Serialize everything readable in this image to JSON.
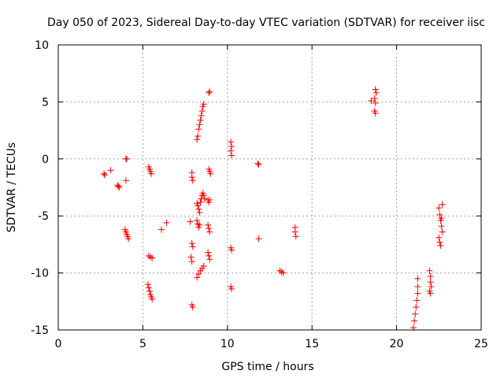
{
  "chart_data": {
    "type": "scatter",
    "title": "Day 050 of 2023, Sidereal Day-to-day VTEC variation (SDTVAR) for receiver iisc",
    "xlabel": "GPS time / hours",
    "ylabel": "SDTVAR / TECUs",
    "xlim": [
      0,
      25
    ],
    "ylim": [
      -15,
      10
    ],
    "xticks": [
      0,
      5,
      10,
      15,
      20,
      25
    ],
    "yticks": [
      -15,
      -10,
      -5,
      0,
      5,
      10
    ],
    "xtick_labels": [
      "0",
      "5",
      "10",
      "15",
      "20",
      "25"
    ],
    "ytick_labels": [
      "-15",
      "-10",
      "-5",
      "0",
      "5",
      "10"
    ],
    "grid": true,
    "marker": "+",
    "color": "#ff0000",
    "series": [
      {
        "name": "SDTVAR",
        "points": [
          [
            2.7,
            -1.3
          ],
          [
            2.75,
            -1.4
          ],
          [
            3.1,
            -1.0
          ],
          [
            3.5,
            -2.3
          ],
          [
            3.55,
            -2.4
          ],
          [
            3.6,
            -2.5
          ],
          [
            4.0,
            -1.9
          ],
          [
            4.0,
            0.0
          ],
          [
            4.05,
            0.0
          ],
          [
            3.95,
            -6.2
          ],
          [
            4.0,
            -6.4
          ],
          [
            4.05,
            -6.6
          ],
          [
            4.1,
            -6.8
          ],
          [
            4.15,
            -7.0
          ],
          [
            5.35,
            -0.7
          ],
          [
            5.4,
            -0.9
          ],
          [
            5.45,
            -1.1
          ],
          [
            5.5,
            -1.3
          ],
          [
            5.35,
            -8.5
          ],
          [
            5.45,
            -8.6
          ],
          [
            5.55,
            -8.7
          ],
          [
            5.3,
            -11.0
          ],
          [
            5.35,
            -11.3
          ],
          [
            5.4,
            -11.6
          ],
          [
            5.45,
            -11.9
          ],
          [
            5.5,
            -12.1
          ],
          [
            5.55,
            -12.3
          ],
          [
            6.1,
            -6.2
          ],
          [
            6.4,
            -5.6
          ],
          [
            7.9,
            -1.2
          ],
          [
            7.9,
            -1.6
          ],
          [
            7.95,
            -1.9
          ],
          [
            7.8,
            -5.5
          ],
          [
            7.9,
            -7.4
          ],
          [
            7.95,
            -7.7
          ],
          [
            7.85,
            -8.6
          ],
          [
            7.9,
            -9.0
          ],
          [
            7.9,
            -12.8
          ],
          [
            7.95,
            -13.0
          ],
          [
            8.2,
            1.7
          ],
          [
            8.25,
            2.0
          ],
          [
            8.3,
            2.6
          ],
          [
            8.35,
            3.0
          ],
          [
            8.4,
            3.4
          ],
          [
            8.45,
            3.8
          ],
          [
            8.5,
            4.2
          ],
          [
            8.55,
            4.6
          ],
          [
            8.6,
            4.8
          ],
          [
            8.2,
            -3.9
          ],
          [
            8.25,
            -4.1
          ],
          [
            8.3,
            -4.4
          ],
          [
            8.35,
            -4.7
          ],
          [
            8.4,
            -3.8
          ],
          [
            8.45,
            -3.5
          ],
          [
            8.5,
            -3.2
          ],
          [
            8.55,
            -3.0
          ],
          [
            8.6,
            -3.2
          ],
          [
            8.65,
            -3.5
          ],
          [
            8.2,
            -5.4
          ],
          [
            8.25,
            -5.7
          ],
          [
            8.3,
            -6.0
          ],
          [
            8.35,
            -5.8
          ],
          [
            8.2,
            -10.4
          ],
          [
            8.3,
            -10.1
          ],
          [
            8.4,
            -9.8
          ],
          [
            8.5,
            -9.6
          ],
          [
            8.6,
            -9.4
          ],
          [
            8.9,
            5.8
          ],
          [
            8.95,
            5.9
          ],
          [
            8.9,
            -0.9
          ],
          [
            8.95,
            -1.1
          ],
          [
            9.0,
            -1.3
          ],
          [
            8.85,
            -3.6
          ],
          [
            8.9,
            -3.8
          ],
          [
            8.95,
            -3.6
          ],
          [
            8.85,
            -5.8
          ],
          [
            8.9,
            -6.1
          ],
          [
            8.95,
            -6.4
          ],
          [
            8.85,
            -8.2
          ],
          [
            8.9,
            -8.5
          ],
          [
            8.95,
            -8.8
          ],
          [
            10.2,
            1.5
          ],
          [
            10.25,
            1.1
          ],
          [
            10.2,
            0.7
          ],
          [
            10.25,
            0.3
          ],
          [
            10.2,
            -7.8
          ],
          [
            10.25,
            -8.0
          ],
          [
            10.2,
            -11.2
          ],
          [
            10.25,
            -11.4
          ],
          [
            11.8,
            -0.4
          ],
          [
            11.85,
            -0.5
          ],
          [
            11.85,
            -7.0
          ],
          [
            13.1,
            -9.8
          ],
          [
            13.2,
            -9.9
          ],
          [
            13.3,
            -10.0
          ],
          [
            14.0,
            -6.0
          ],
          [
            14.0,
            -6.4
          ],
          [
            14.05,
            -6.8
          ],
          [
            18.5,
            5.1
          ],
          [
            18.7,
            5.3
          ],
          [
            18.75,
            6.1
          ],
          [
            18.8,
            5.8
          ],
          [
            18.75,
            4.9
          ],
          [
            18.7,
            4.2
          ],
          [
            18.75,
            4.0
          ],
          [
            21.0,
            -14.8
          ],
          [
            21.05,
            -14.2
          ],
          [
            21.1,
            -13.6
          ],
          [
            21.15,
            -13.0
          ],
          [
            21.2,
            -12.4
          ],
          [
            21.25,
            -11.8
          ],
          [
            21.25,
            -11.2
          ],
          [
            21.25,
            -10.5
          ],
          [
            21.95,
            -9.8
          ],
          [
            22.0,
            -10.3
          ],
          [
            22.0,
            -10.8
          ],
          [
            22.05,
            -11.2
          ],
          [
            21.95,
            -11.6
          ],
          [
            22.0,
            -11.8
          ],
          [
            22.5,
            -4.3
          ],
          [
            22.55,
            -4.9
          ],
          [
            22.6,
            -5.4
          ],
          [
            22.65,
            -5.9
          ],
          [
            22.7,
            -6.4
          ],
          [
            22.5,
            -6.9
          ],
          [
            22.55,
            -7.3
          ],
          [
            22.6,
            -7.6
          ],
          [
            22.65,
            -5.2
          ],
          [
            22.7,
            -4.0
          ]
        ]
      }
    ]
  }
}
